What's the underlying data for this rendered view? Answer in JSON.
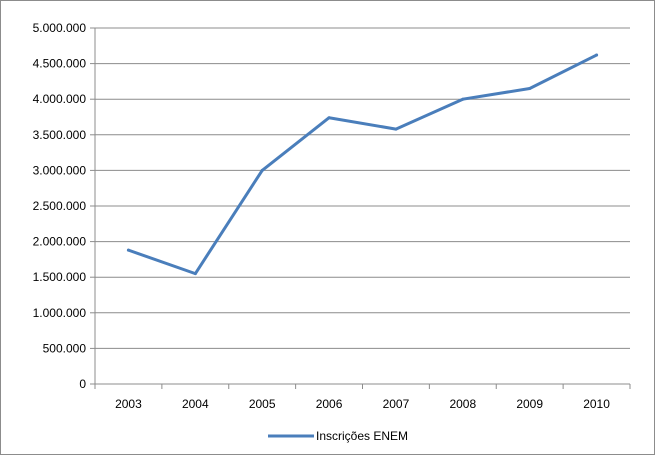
{
  "chart_data": {
    "type": "line",
    "categories": [
      "2003",
      "2004",
      "2005",
      "2006",
      "2007",
      "2008",
      "2009",
      "2010"
    ],
    "series": [
      {
        "name": "Inscrições ENEM",
        "values": [
          1880000,
          1550000,
          3000000,
          3740000,
          3580000,
          4000000,
          4150000,
          4620000
        ],
        "color": "#4a7ebb"
      }
    ],
    "yticks": [
      "0",
      "500.000",
      "1.000.000",
      "1.500.000",
      "2.000.000",
      "2.500.000",
      "3.000.000",
      "3.500.000",
      "4.000.000",
      "4.500.000",
      "5.000.000"
    ],
    "ylim": [
      0,
      5000000
    ],
    "grid": true,
    "legend_position": "bottom",
    "gridline_color": "#8c8c8c",
    "axis_color": "#8c8c8c"
  }
}
